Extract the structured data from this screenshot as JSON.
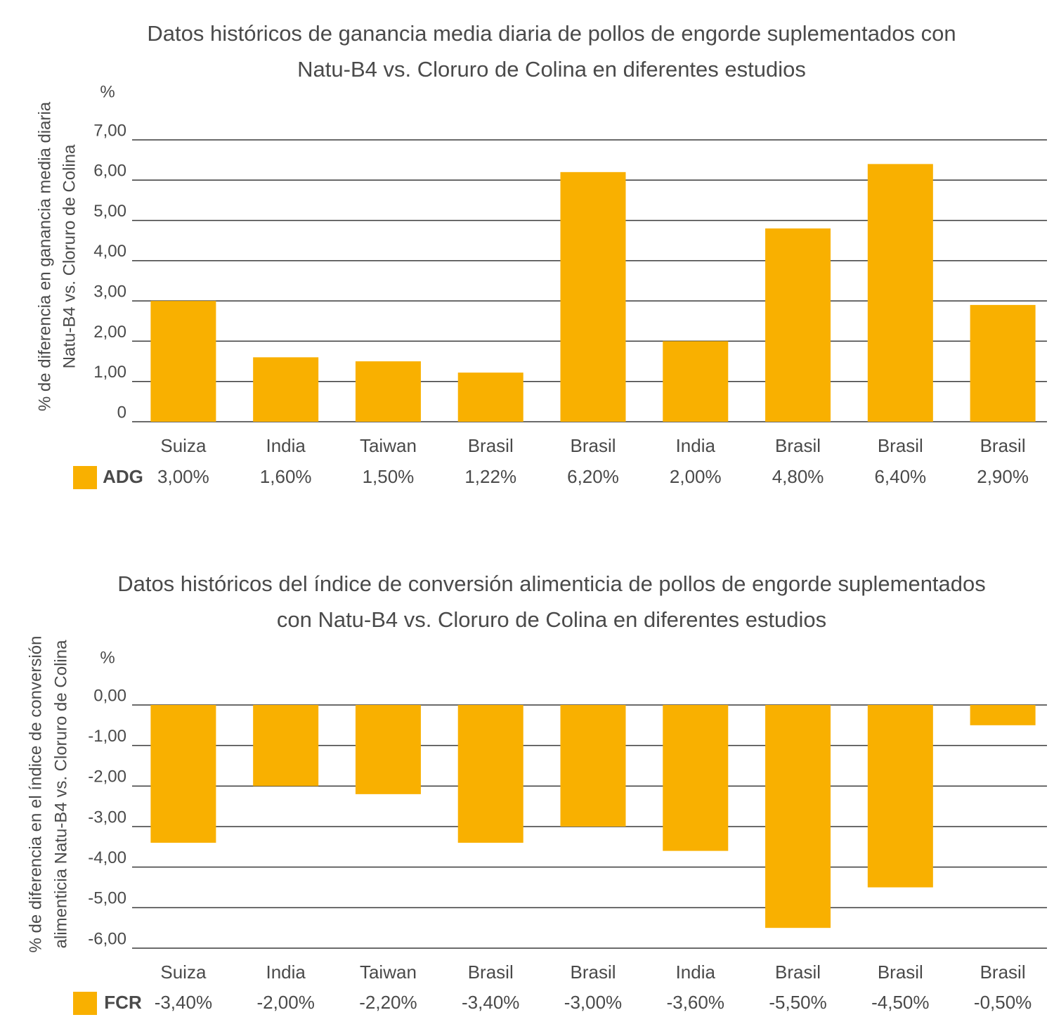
{
  "chart_data": [
    {
      "type": "bar",
      "title": [
        "Datos históricos de ganancia media diaria de pollos de engorde suplementados con",
        "Natu-B4 vs. Cloruro de Colina en diferentes estudios"
      ],
      "unit": "%",
      "ylabel": [
        "% de diferencia en ganancia media diaria",
        "Natu-B4 vs. Cloruro de Colina"
      ],
      "categories": [
        "Suiza",
        "India",
        "Taiwan",
        "Brasil",
        "Brasil",
        "India",
        "Brasil",
        "Brasil",
        "Brasil"
      ],
      "series": [
        {
          "name": "ADG",
          "color": "#f9b000",
          "values": [
            3.0,
            1.6,
            1.5,
            1.22,
            6.2,
            2.0,
            4.8,
            6.4,
            2.9
          ],
          "value_labels": [
            "3,00%",
            "1,60%",
            "1,50%",
            "1,22%",
            "6,20%",
            "2,00%",
            "4,80%",
            "6,40%",
            "2,90%"
          ]
        }
      ],
      "ylim": [
        0,
        7
      ],
      "yticks": [
        0,
        {
          "value": 1,
          "label": "1,00"
        },
        {
          "value": 2,
          "label": "2,00"
        },
        {
          "value": 3,
          "label": "3,00"
        },
        {
          "value": 4,
          "label": "4,00"
        },
        {
          "value": 5,
          "label": "5,00"
        },
        {
          "value": 6,
          "label": "6,00"
        },
        {
          "value": 7,
          "label": "7,00"
        }
      ],
      "grid": true
    },
    {
      "type": "bar",
      "title": [
        "Datos históricos del índice de conversión alimenticia de pollos de engorde suplementados",
        "con Natu-B4 vs. Cloruro de Colina en diferentes estudios"
      ],
      "unit": "%",
      "ylabel": [
        "% de diferencia en el índice de conversión",
        "alimenticia Natu-B4 vs. Cloruro de Colina"
      ],
      "categories": [
        "Suiza",
        "India",
        "Taiwan",
        "Brasil",
        "Brasil",
        "India",
        "Brasil",
        "Brasil",
        "Brasil"
      ],
      "series": [
        {
          "name": "FCR",
          "color": "#f9b000",
          "values": [
            -3.4,
            -2.0,
            -2.2,
            -3.4,
            -3.0,
            -3.6,
            -5.5,
            -4.5,
            -0.5
          ],
          "value_labels": [
            "-3,40%",
            "-2,00%",
            "-2,20%",
            "-3,40%",
            "-3,00%",
            "-3,60%",
            "-5,50%",
            "-4,50%",
            "-0,50%"
          ]
        }
      ],
      "ylim": [
        -6,
        0
      ],
      "yticks": [
        {
          "value": 0,
          "label": "0,00"
        },
        {
          "value": -1,
          "label": "-1,00"
        },
        {
          "value": -2,
          "label": "-2,00"
        },
        {
          "value": -3,
          "label": "-3,00"
        },
        {
          "value": -4,
          "label": "-4,00"
        },
        {
          "value": -5,
          "label": "-5,00"
        },
        {
          "value": -6,
          "label": "-6,00"
        }
      ],
      "grid": true
    }
  ]
}
